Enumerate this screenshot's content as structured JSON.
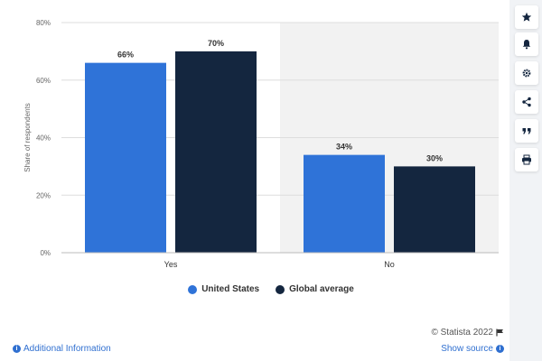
{
  "chart_data": {
    "type": "bar",
    "categories": [
      "Yes",
      "No"
    ],
    "series": [
      {
        "name": "United States",
        "values": [
          66,
          34
        ],
        "labels": [
          "66%",
          "34%"
        ],
        "color": "#2f73d8"
      },
      {
        "name": "Global average",
        "values": [
          70,
          30
        ],
        "labels": [
          "70%",
          "30%"
        ],
        "color": "#14263f"
      }
    ],
    "ylabel": "Share of respondents",
    "ylim": [
      0,
      80
    ],
    "yticks": [
      0,
      20,
      40,
      60,
      80
    ],
    "ytick_labels": [
      "0%",
      "20%",
      "40%",
      "60%",
      "80%"
    ],
    "grid": true,
    "legend": "bottom-center"
  },
  "footer": {
    "copyright": "© Statista 2022",
    "additional_info": "Additional Information",
    "show_source": "Show source"
  },
  "sidebar": {
    "icons": [
      "star-icon",
      "bell-icon",
      "gear-icon",
      "share-icon",
      "quote-icon",
      "print-icon"
    ]
  }
}
